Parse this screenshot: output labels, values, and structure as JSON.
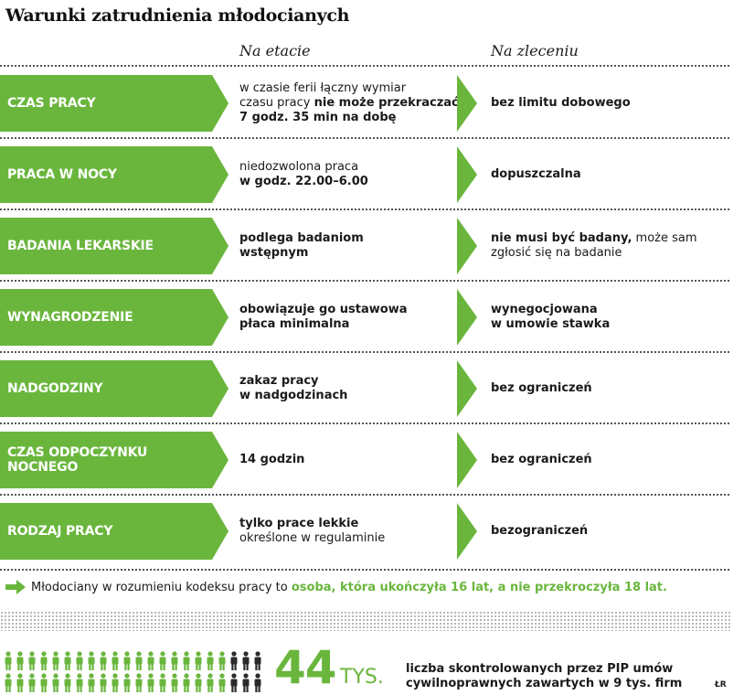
{
  "title": "Warunki zatrudnienia młodocianych",
  "columns": {
    "etat": "Na etacie",
    "zlecenie": "Na zleceniu"
  },
  "rows": [
    {
      "label": "CZAS PRACY",
      "etat": [
        {
          "t": "w czasie ferii łączny wymiar",
          "b": false
        },
        {
          "t": "czasu pracy ",
          "b": false,
          "cont": "nie może przekraczać"
        },
        {
          "t": "7 godz. 35 min na dobę",
          "b": true
        }
      ],
      "zlecenie": [
        {
          "t": "bez limitu dobowego",
          "b": true
        }
      ]
    },
    {
      "label": "PRACA W NOCY",
      "etat": [
        {
          "t": "niedozwolona praca",
          "b": false
        },
        {
          "t": "w godz. 22.00–6.00",
          "b": true
        }
      ],
      "zlecenie": [
        {
          "t": "dopuszczalna",
          "b": true
        }
      ]
    },
    {
      "label": "BADANIA LEKARSKIE",
      "etat": [
        {
          "t": "podlega badaniom",
          "b": true
        },
        {
          "t": "wstępnym",
          "b": true
        }
      ],
      "zlecenie": [
        {
          "t": "nie musi być badany,",
          "b": true,
          "cont": " może sam"
        },
        {
          "t": "zgłosić się na badanie",
          "b": false
        }
      ]
    },
    {
      "label": "WYNAGRODZENIE",
      "etat": [
        {
          "t": "obowiązuje go ustawowa",
          "b": true
        },
        {
          "t": "płaca minimalna",
          "b": true
        }
      ],
      "zlecenie": [
        {
          "t": "wynegocjowana",
          "b": true
        },
        {
          "t": "w umowie stawka",
          "b": true
        }
      ]
    },
    {
      "label": "NADGODZINY",
      "etat": [
        {
          "t": "zakaz pracy",
          "b": true
        },
        {
          "t": "w nadgodzinach",
          "b": true
        }
      ],
      "zlecenie": [
        {
          "t": "bez ograniczeń",
          "b": true
        }
      ]
    },
    {
      "label": "CZAS ODPOCZYNKU NOCNEGO",
      "etat": [
        {
          "t": "14 godzin",
          "b": true
        }
      ],
      "zlecenie": [
        {
          "t": "bez ograniczeń",
          "b": true
        }
      ]
    },
    {
      "label": "RODZAJ PRACY",
      "etat": [
        {
          "t": "tylko prace lekkie",
          "b": true
        },
        {
          "t": "określone w regulaminie",
          "b": false
        }
      ],
      "zlecenie": [
        {
          "t": "bezograniczeń",
          "b": true
        }
      ]
    }
  ],
  "note": {
    "prefix": "Młodociany w rozumieniu kodeksu pracy to ",
    "highlight": "osoba, która ukończyła 16 lat, a nie przekroczyła 18 lat."
  },
  "stat": {
    "number": "44",
    "unit": "TYS.",
    "line1": "liczba skontrolowanych przez PIP umów",
    "line2": "cywilnoprawnych zawartych w 9 tys. firm"
  },
  "credit": "ŁR",
  "people_count": 44,
  "colors": {
    "accent": "#6ab63d"
  }
}
